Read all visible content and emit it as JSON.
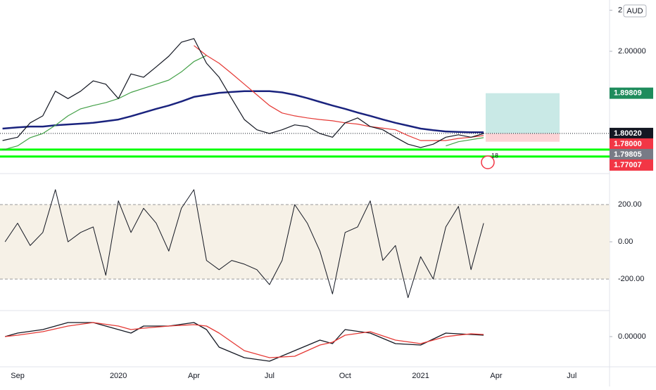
{
  "chart_data": [
    {
      "type": "line",
      "currency": "AUD",
      "xlim": [
        -4.7,
        19.5
      ],
      "ylim": [
        1.706,
        2.1248
      ],
      "yticks": [
        {
          "value": 2.1,
          "label": "2"
        },
        {
          "value": 2.0,
          "label": "2.00000"
        }
      ],
      "x": [
        -4.6,
        -4,
        -3.5,
        -3,
        -2.5,
        -2,
        -1.5,
        -1,
        -0.5,
        0,
        0.5,
        1,
        1.5,
        2,
        2.5,
        3,
        3.5,
        4,
        4.5,
        5,
        5.5,
        6,
        6.5,
        7,
        7.5,
        8,
        8.5,
        9,
        9.5,
        10,
        10.5,
        11,
        11.5,
        12,
        12.5,
        13,
        13.5,
        14,
        14.5
      ],
      "series": [
        {
          "color": "#1a237e",
          "width": 2.5,
          "values": [
            1.812,
            1.815,
            1.817,
            1.817,
            1.82,
            1.822,
            1.824,
            1.826,
            1.83,
            1.834,
            1.842,
            1.851,
            1.86,
            1.868,
            1.878,
            1.889,
            1.894,
            1.899,
            1.901,
            1.903,
            1.903,
            1.903,
            1.9,
            1.894,
            1.886,
            1.877,
            1.868,
            1.86,
            1.851,
            1.843,
            1.834,
            1.826,
            1.819,
            1.812,
            1.808,
            1.805,
            1.804,
            1.803,
            1.803
          ]
        },
        {
          "color": "#43a047",
          "width": 1.2,
          "values": [
            1.76,
            1.77,
            1.79,
            1.8,
            1.82,
            1.843,
            1.86,
            1.868,
            1.875,
            1.885,
            1.9,
            1.91,
            1.92,
            1.93,
            1.95,
            1.975,
            1.99,
            null,
            null,
            null,
            null,
            null,
            null,
            null,
            null,
            null,
            null,
            null,
            null,
            null,
            null,
            null,
            null,
            null,
            null,
            1.77,
            1.78,
            1.785,
            1.79
          ]
        },
        {
          "color": "#e53935",
          "width": 1.2,
          "values": [
            null,
            null,
            null,
            null,
            null,
            null,
            null,
            null,
            null,
            null,
            null,
            null,
            null,
            null,
            null,
            2.014,
            1.99,
            1.971,
            1.946,
            1.92,
            1.894,
            1.868,
            1.85,
            1.843,
            1.838,
            1.834,
            1.831,
            1.826,
            1.823,
            1.817,
            1.813,
            1.809,
            1.795,
            1.783,
            1.783,
            1.783,
            1.788,
            1.791,
            1.795
          ]
        },
        {
          "color": "#131722",
          "width": 1.2,
          "values": [
            1.783,
            1.791,
            1.826,
            1.843,
            1.903,
            1.885,
            1.903,
            1.928,
            1.92,
            1.885,
            1.945,
            1.937,
            1.962,
            1.988,
            2.022,
            2.031,
            1.971,
            1.937,
            1.885,
            1.834,
            1.809,
            1.8,
            1.809,
            1.821,
            1.817,
            1.8,
            1.791,
            1.826,
            1.838,
            1.817,
            1.809,
            1.791,
            1.774,
            1.766,
            1.774,
            1.791,
            1.797,
            1.791,
            1.8
          ]
        }
      ],
      "hlines": [
        1.761,
        1.744
      ],
      "alert_count": "18",
      "price_labels": [
        {
          "value": 1.89809,
          "label": "1.89809",
          "color": "#1e8c5c"
        },
        {
          "value": 1.8002,
          "label": "1.80020",
          "color": "#131722"
        },
        {
          "value": 1.78,
          "label": "1.78000",
          "color": "#f23645"
        },
        {
          "value": 1.79805,
          "label": "1.79805",
          "color": "#787b86"
        },
        {
          "value": 1.77007,
          "label": "1.77007",
          "color": "#f23645"
        }
      ]
    },
    {
      "type": "line",
      "band": true,
      "xlim": [
        -4.7,
        19.5
      ],
      "ylim": [
        -362,
        355
      ],
      "yticks": [
        {
          "value": 200,
          "label": "200.00"
        },
        {
          "value": 0,
          "label": "0.00"
        },
        {
          "value": -200,
          "label": "-200.00"
        }
      ],
      "x": [
        -4.5,
        -4,
        -3.5,
        -3,
        -2.5,
        -2,
        -1.5,
        -1,
        -0.5,
        0,
        0.5,
        1,
        1.5,
        2,
        2.5,
        3,
        3.5,
        4,
        4.5,
        5,
        5.5,
        6,
        6.5,
        7,
        7.5,
        8,
        8.5,
        9,
        9.5,
        10,
        10.5,
        11,
        11.5,
        12,
        12.5,
        13,
        13.5,
        14,
        14.5
      ],
      "series": [
        {
          "color": "#131722",
          "width": 1,
          "values": [
            0,
            100,
            -20,
            50,
            280,
            0,
            50,
            80,
            -180,
            220,
            50,
            180,
            100,
            -50,
            180,
            280,
            -100,
            -150,
            -100,
            -120,
            -150,
            -230,
            -100,
            200,
            100,
            -50,
            -280,
            50,
            80,
            220,
            -100,
            -20,
            -300,
            -80,
            -200,
            80,
            190,
            -150,
            100
          ]
        }
      ]
    },
    {
      "type": "line",
      "xlim": [
        -4.7,
        19.5
      ],
      "ylim": [
        -0.041,
        0.034
      ],
      "yticks": [
        {
          "value": 0,
          "label": "0.00000"
        }
      ],
      "xticks": [
        {
          "value": -4,
          "label": "Sep"
        },
        {
          "value": 0,
          "label": "2020"
        },
        {
          "value": 3,
          "label": "Apr"
        },
        {
          "value": 6,
          "label": "Jul"
        },
        {
          "value": 9,
          "label": "Oct"
        },
        {
          "value": 12,
          "label": "2021"
        },
        {
          "value": 15,
          "label": "Apr"
        },
        {
          "value": 18,
          "label": "Jul"
        }
      ],
      "x": [
        -4.5,
        -4,
        -3,
        -2,
        -1,
        0,
        0.5,
        1,
        2,
        3,
        3.5,
        4,
        5,
        6,
        7,
        8,
        8.5,
        9,
        10,
        11,
        12,
        13,
        14,
        14.5
      ],
      "series": [
        {
          "color": "#131722",
          "width": 1.3,
          "values": [
            0,
            0.005,
            0.01,
            0.02,
            0.02,
            0.01,
            0.005,
            0.015,
            0.015,
            0.02,
            0.01,
            -0.015,
            -0.03,
            -0.035,
            -0.02,
            -0.005,
            -0.01,
            0.01,
            0.005,
            -0.01,
            -0.012,
            0.005,
            0.003,
            0.002
          ]
        },
        {
          "color": "#e53935",
          "width": 1.3,
          "values": [
            0,
            0.002,
            0.007,
            0.015,
            0.02,
            0.015,
            0.01,
            0.012,
            0.015,
            0.017,
            0.015,
            0.005,
            -0.02,
            -0.03,
            -0.028,
            -0.012,
            -0.008,
            0.002,
            0.007,
            -0.005,
            -0.01,
            0,
            0.004,
            0.003
          ]
        }
      ]
    }
  ]
}
